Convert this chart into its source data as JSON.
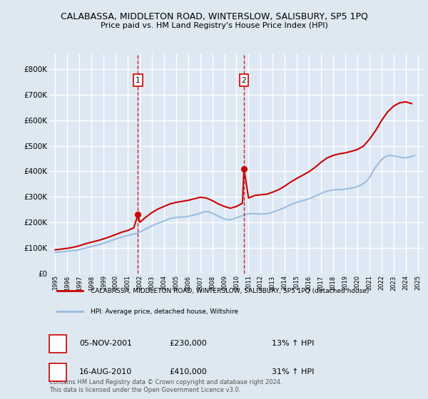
{
  "title": "CALABASSA, MIDDLETON ROAD, WINTERSLOW, SALISBURY, SP5 1PQ",
  "subtitle": "Price paid vs. HM Land Registry's House Price Index (HPI)",
  "title_fontsize": 9.0,
  "subtitle_fontsize": 8.0,
  "ylabel_ticks": [
    "£0",
    "£100K",
    "£200K",
    "£300K",
    "£400K",
    "£500K",
    "£600K",
    "£700K",
    "£800K"
  ],
  "ytick_values": [
    0,
    100000,
    200000,
    300000,
    400000,
    500000,
    600000,
    700000,
    800000
  ],
  "ylim": [
    0,
    860000
  ],
  "xlim_start": 1994.5,
  "xlim_end": 2025.5,
  "background_color": "#dde8f0",
  "plot_bg_color": "#dde8f4",
  "grid_color": "#ffffff",
  "red_color": "#cc0000",
  "blue_color": "#99bbdd",
  "transaction1_x": 2001.84,
  "transaction1_y": 230000,
  "transaction2_x": 2010.62,
  "transaction2_y": 410000,
  "legend_label_red": "CALABASSA, MIDDLETON ROAD, WINTERSLOW, SALISBURY, SP5 1PQ (detached house)",
  "legend_label_blue": "HPI: Average price, detached house, Wiltshire",
  "table_row1": [
    "1",
    "05-NOV-2001",
    "£230,000",
    "13% ↑ HPI"
  ],
  "table_row2": [
    "2",
    "16-AUG-2010",
    "£410,000",
    "31% ↑ HPI"
  ],
  "footer": "Contains HM Land Registry data © Crown copyright and database right 2024.\nThis data is licensed under the Open Government Licence v3.0.",
  "hpi_years": [
    1995.0,
    1995.25,
    1995.5,
    1995.75,
    1996.0,
    1996.25,
    1996.5,
    1996.75,
    1997.0,
    1997.25,
    1997.5,
    1997.75,
    1998.0,
    1998.25,
    1998.5,
    1998.75,
    1999.0,
    1999.25,
    1999.5,
    1999.75,
    2000.0,
    2000.25,
    2000.5,
    2000.75,
    2001.0,
    2001.25,
    2001.5,
    2001.75,
    2002.0,
    2002.25,
    2002.5,
    2002.75,
    2003.0,
    2003.25,
    2003.5,
    2003.75,
    2004.0,
    2004.25,
    2004.5,
    2004.75,
    2005.0,
    2005.25,
    2005.5,
    2005.75,
    2006.0,
    2006.25,
    2006.5,
    2006.75,
    2007.0,
    2007.25,
    2007.5,
    2007.75,
    2008.0,
    2008.25,
    2008.5,
    2008.75,
    2009.0,
    2009.25,
    2009.5,
    2009.75,
    2010.0,
    2010.25,
    2010.5,
    2010.75,
    2011.0,
    2011.25,
    2011.5,
    2011.75,
    2012.0,
    2012.25,
    2012.5,
    2012.75,
    2013.0,
    2013.25,
    2013.5,
    2013.75,
    2014.0,
    2014.25,
    2014.5,
    2014.75,
    2015.0,
    2015.25,
    2015.5,
    2015.75,
    2016.0,
    2016.25,
    2016.5,
    2016.75,
    2017.0,
    2017.25,
    2017.5,
    2017.75,
    2018.0,
    2018.25,
    2018.5,
    2018.75,
    2019.0,
    2019.25,
    2019.5,
    2019.75,
    2020.0,
    2020.25,
    2020.5,
    2020.75,
    2021.0,
    2021.25,
    2021.5,
    2021.75,
    2022.0,
    2022.25,
    2022.5,
    2022.75,
    2023.0,
    2023.25,
    2023.5,
    2023.75,
    2024.0,
    2024.25,
    2024.5,
    2024.75
  ],
  "hpi_values": [
    82000,
    83000,
    84000,
    85000,
    87000,
    88000,
    89000,
    90000,
    93000,
    96000,
    99000,
    102000,
    105000,
    108000,
    111000,
    114000,
    118000,
    122000,
    126000,
    130000,
    134000,
    138000,
    142000,
    145000,
    148000,
    151000,
    154000,
    157000,
    162000,
    168000,
    174000,
    180000,
    186000,
    192000,
    196000,
    200000,
    205000,
    210000,
    214000,
    217000,
    219000,
    220000,
    221000,
    221000,
    223000,
    226000,
    229000,
    232000,
    236000,
    240000,
    242000,
    240000,
    236000,
    230000,
    224000,
    218000,
    213000,
    210000,
    210000,
    213000,
    218000,
    222000,
    226000,
    230000,
    233000,
    234000,
    234000,
    233000,
    232000,
    233000,
    234000,
    236000,
    240000,
    244000,
    248000,
    253000,
    258000,
    264000,
    269000,
    274000,
    278000,
    282000,
    285000,
    288000,
    292000,
    297000,
    302000,
    307000,
    313000,
    318000,
    322000,
    325000,
    327000,
    328000,
    328000,
    328000,
    330000,
    332000,
    334000,
    336000,
    340000,
    345000,
    352000,
    360000,
    375000,
    395000,
    415000,
    430000,
    445000,
    455000,
    460000,
    462000,
    460000,
    458000,
    455000,
    453000,
    452000,
    455000,
    458000,
    462000
  ],
  "red_years": [
    1995.0,
    1995.5,
    1996.0,
    1996.5,
    1997.0,
    1997.5,
    1998.0,
    1998.5,
    1999.0,
    1999.5,
    2000.0,
    2000.5,
    2001.0,
    2001.5,
    2001.84,
    2002.0,
    2002.5,
    2003.0,
    2003.5,
    2004.0,
    2004.5,
    2005.0,
    2005.5,
    2006.0,
    2006.5,
    2007.0,
    2007.5,
    2008.0,
    2008.5,
    2009.0,
    2009.5,
    2010.0,
    2010.5,
    2010.62,
    2011.0,
    2011.5,
    2012.0,
    2012.5,
    2013.0,
    2013.5,
    2014.0,
    2014.5,
    2015.0,
    2015.5,
    2016.0,
    2016.5,
    2017.0,
    2017.5,
    2018.0,
    2018.5,
    2019.0,
    2019.5,
    2020.0,
    2020.5,
    2021.0,
    2021.5,
    2022.0,
    2022.5,
    2023.0,
    2023.5,
    2024.0,
    2024.5
  ],
  "red_values": [
    92000,
    95000,
    98000,
    102000,
    108000,
    116000,
    122000,
    128000,
    135000,
    143000,
    152000,
    161000,
    168000,
    178000,
    230000,
    200000,
    220000,
    238000,
    252000,
    262000,
    272000,
    278000,
    282000,
    286000,
    292000,
    298000,
    295000,
    285000,
    272000,
    262000,
    255000,
    262000,
    275000,
    410000,
    295000,
    305000,
    308000,
    310000,
    318000,
    328000,
    342000,
    358000,
    372000,
    385000,
    398000,
    415000,
    435000,
    452000,
    462000,
    468000,
    472000,
    478000,
    485000,
    498000,
    525000,
    558000,
    598000,
    632000,
    655000,
    668000,
    672000,
    665000
  ]
}
